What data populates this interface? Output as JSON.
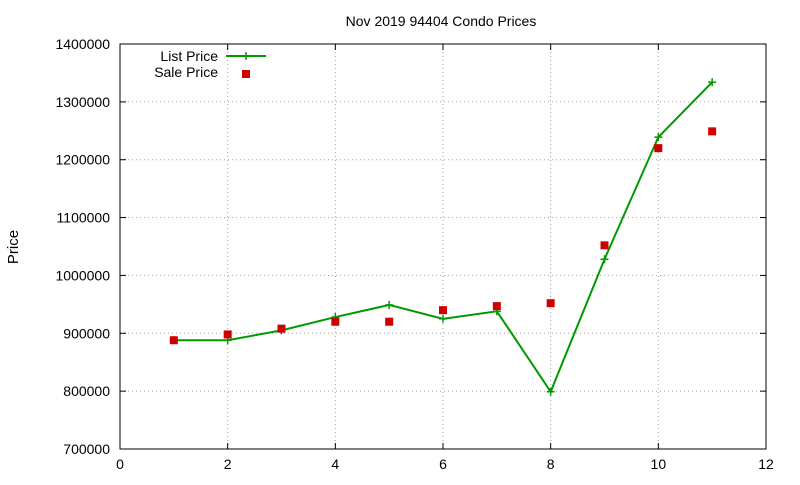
{
  "chart_data": {
    "type": "scatter",
    "title": "Nov 2019 94404 Condo Prices",
    "xlabel": "",
    "ylabel": "Price",
    "xlim": [
      0,
      12
    ],
    "ylim": [
      700000,
      1400000
    ],
    "xticks": [
      0,
      2,
      4,
      6,
      8,
      10,
      12
    ],
    "yticks": [
      700000,
      800000,
      900000,
      1000000,
      1100000,
      1200000,
      1300000,
      1400000
    ],
    "grid": true,
    "legend_position": "top-left",
    "series": [
      {
        "name": "List Price",
        "type": "line",
        "marker": "plus",
        "color": "#009900",
        "x": [
          1,
          2,
          3,
          4,
          5,
          6,
          7,
          8,
          9,
          10,
          11
        ],
        "y": [
          888000,
          888000,
          905000,
          928000,
          949000,
          925000,
          938000,
          799000,
          1028000,
          1239000,
          1334000
        ]
      },
      {
        "name": "Sale Price",
        "type": "scatter",
        "marker": "square",
        "color": "#cc0000",
        "x": [
          1,
          2,
          3,
          4,
          5,
          6,
          7,
          8,
          9,
          10,
          11
        ],
        "y": [
          888000,
          898000,
          908000,
          920000,
          920000,
          940000,
          947000,
          952000,
          1052000,
          1220000,
          1249000
        ]
      }
    ]
  }
}
